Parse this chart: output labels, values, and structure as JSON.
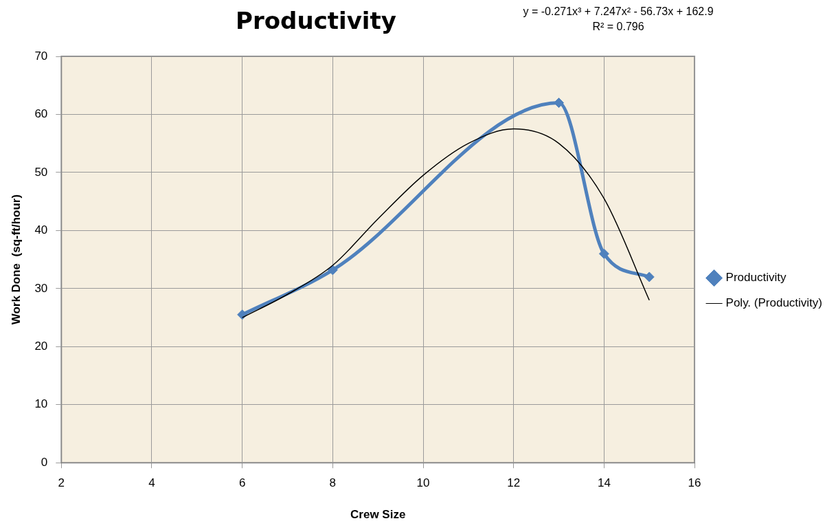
{
  "chart_data": {
    "type": "line",
    "title": "Productivity",
    "xlabel": "Crew Size",
    "ylabel": "Work Done  (sq-ft/hour)",
    "annotations": [
      "y = -0.271x³ + 7.247x² - 56.73x + 162.9",
      "R² = 0.796"
    ],
    "xlim": [
      2,
      16
    ],
    "xticks": [
      2,
      4,
      6,
      8,
      10,
      12,
      14,
      16
    ],
    "ylim": [
      0,
      70
    ],
    "yticks": [
      0,
      10,
      20,
      30,
      40,
      50,
      60,
      70
    ],
    "grid": true,
    "legend": "right",
    "line_style": "solid",
    "series": [
      {
        "name": "Productivity",
        "color": "#4f81bd",
        "marker": "diamond",
        "x": [
          6,
          8,
          13,
          14,
          15
        ],
        "values": [
          25.5,
          33.2,
          62,
          36,
          32
        ]
      },
      {
        "name": "Poly. (Productivity)",
        "color": "#000000",
        "marker": "none",
        "x": [
          6,
          7,
          8,
          9,
          10,
          11,
          12,
          13,
          14,
          15
        ],
        "values": [
          25,
          29,
          34,
          42,
          49.5,
          55,
          57.5,
          55,
          45.5,
          28
        ]
      }
    ]
  }
}
